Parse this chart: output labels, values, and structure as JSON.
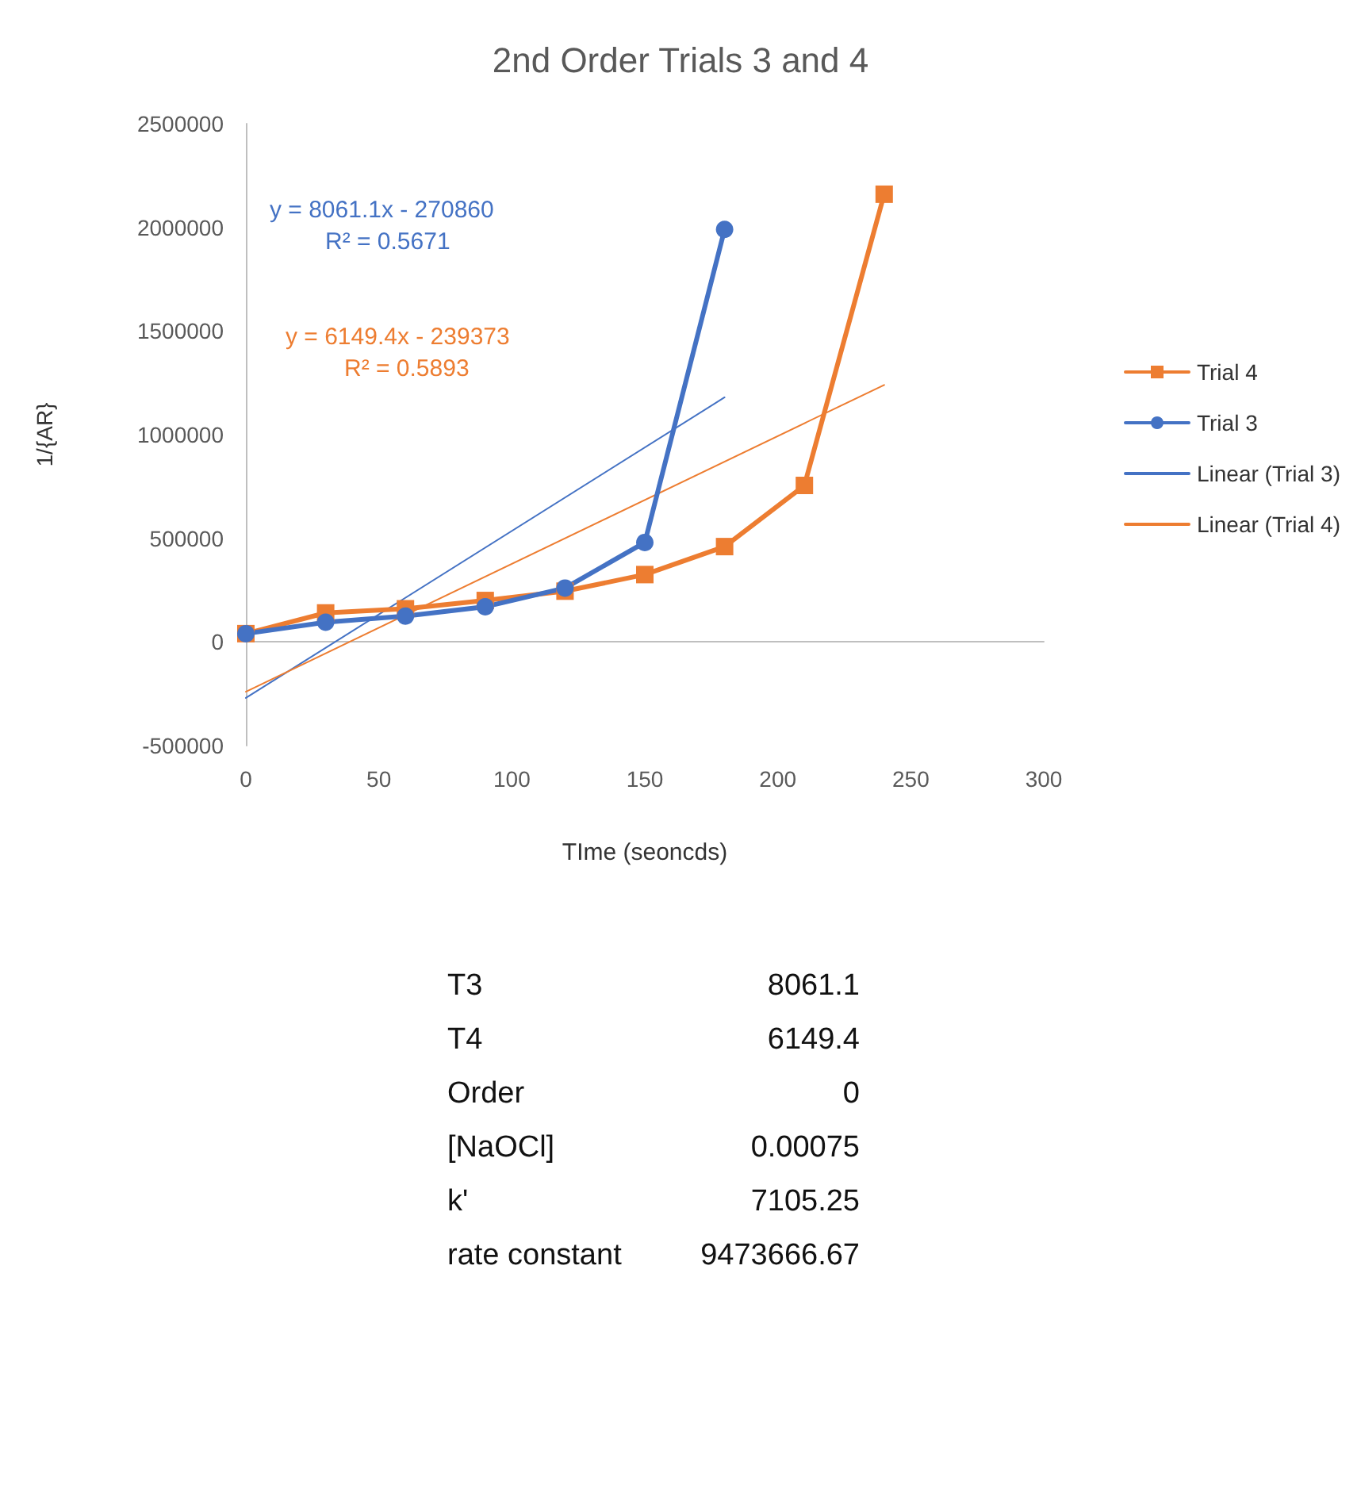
{
  "chart_data": {
    "type": "line",
    "title": "2nd Order Trials 3 and 4",
    "xlabel": "TIme (seoncds)",
    "ylabel": "1/{AR}",
    "xlim": [
      0,
      300
    ],
    "xticks": [
      0,
      50,
      100,
      150,
      200,
      250,
      300
    ],
    "ylim": [
      -500000,
      2500000
    ],
    "yticks": [
      -500000,
      0,
      500000,
      1000000,
      1500000,
      2000000,
      2500000
    ],
    "legend": "right",
    "line_style": "solid",
    "series": [
      {
        "name": "Trial 4",
        "color": "#ed7d31",
        "marker": "square",
        "x": [
          0,
          30,
          60,
          90,
          120,
          150,
          180,
          210,
          240
        ],
        "values": [
          40000,
          140000,
          160000,
          200000,
          245000,
          325000,
          460000,
          755000,
          2160000
        ]
      },
      {
        "name": "Trial 3",
        "color": "#4472c4",
        "marker": "circle",
        "x": [
          0,
          30,
          60,
          90,
          120,
          150,
          180
        ],
        "values": [
          40000,
          95000,
          125000,
          170000,
          260000,
          480000,
          1990000
        ]
      },
      {
        "name": "Linear (Trial 3)",
        "color": "#4472c4",
        "marker": "none",
        "x": [
          0,
          180
        ],
        "values": [
          -270000,
          1180000
        ]
      },
      {
        "name": "Linear (Trial 4)",
        "color": "#ed7d31",
        "marker": "none",
        "x": [
          0,
          240
        ],
        "values": [
          -240000,
          1240000
        ]
      }
    ],
    "annotations": [
      "y = 8061.1x - 270860",
      "R² = 0.5671",
      "y = 6149.4x - 239373",
      "R² = 0.5893",
      "T3",
      "8061.1",
      "T4",
      "6149.4",
      "Order",
      "0",
      "[NaOCl]",
      "0.00075",
      "k'",
      "7105.25",
      "rate constant",
      "9473666.67"
    ]
  }
}
